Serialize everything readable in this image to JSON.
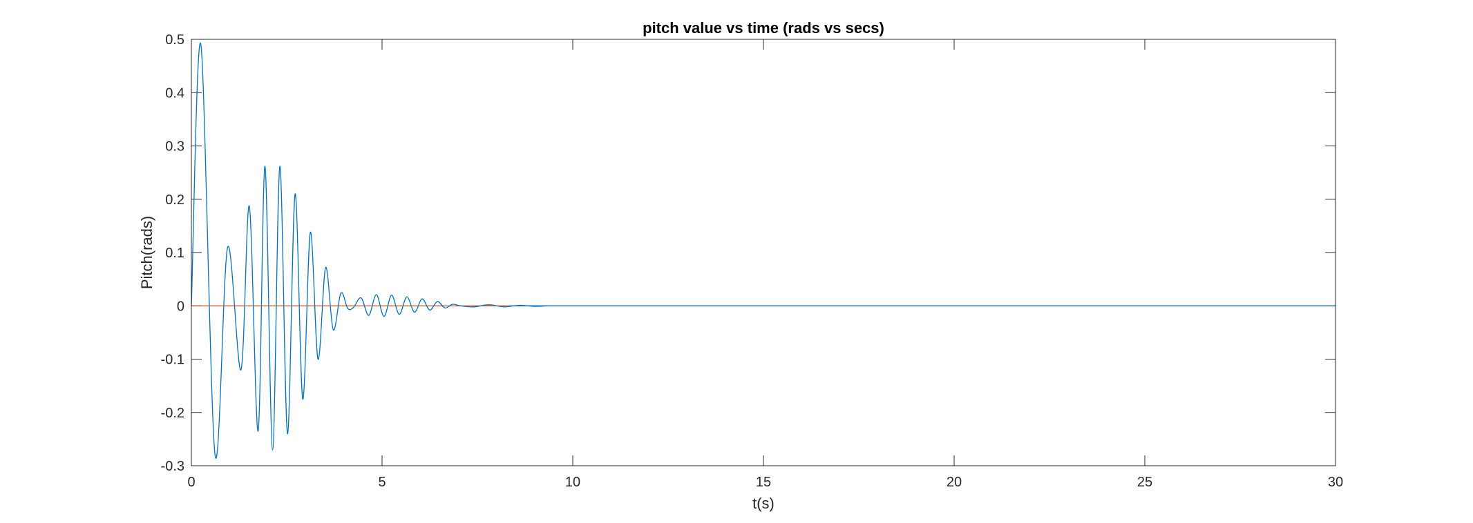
{
  "chart_data": {
    "type": "line",
    "title": "pitch value vs time (rads vs secs)",
    "xlabel": "t(s)",
    "ylabel": "Pitch(rads)",
    "xlim": [
      0,
      30
    ],
    "ylim": [
      -0.3,
      0.5
    ],
    "xticks": [
      0,
      5,
      10,
      15,
      20,
      25,
      30
    ],
    "yticks": [
      -0.3,
      -0.2,
      -0.1,
      0,
      0.1,
      0.2,
      0.3,
      0.4,
      0.5
    ],
    "xtick_labels": [
      "0",
      "5",
      "10",
      "15",
      "20",
      "25",
      "30"
    ],
    "ytick_labels": [
      "-0.3",
      "-0.2",
      "-0.1",
      "0",
      "0.1",
      "0.2",
      "0.3",
      "0.4",
      "0.5"
    ],
    "grid": false,
    "series": [
      {
        "color": "#0072BD",
        "x": [
          0,
          0.25,
          0.62,
          0.95,
          1.3,
          1.52,
          1.75,
          1.93,
          2.13,
          2.32,
          2.52,
          2.72,
          2.92,
          3.12,
          3.32,
          3.52,
          3.72,
          3.92,
          4.1,
          4.25,
          4.45,
          4.65,
          4.85,
          5.05,
          5.25,
          5.45,
          5.65,
          5.85,
          6.05,
          6.25,
          6.45,
          6.65,
          6.85,
          7.05,
          7.4,
          7.8,
          8.2,
          8.6,
          9.0,
          9.4,
          10.0,
          30.0
        ],
        "y": [
          0,
          0.49,
          -0.28,
          0.11,
          -0.12,
          0.187,
          -0.235,
          0.262,
          -0.27,
          0.262,
          -0.24,
          0.21,
          -0.175,
          0.138,
          -0.1,
          0.072,
          -0.045,
          0.024,
          -0.005,
          -0.003,
          0.015,
          -0.018,
          0.021,
          -0.02,
          0.02,
          -0.016,
          0.017,
          -0.012,
          0.013,
          -0.008,
          0.008,
          -0.004,
          0.003,
          0,
          -0.002,
          0.002,
          -0.002,
          0.001,
          -0.001,
          0,
          0,
          0
        ]
      },
      {
        "color": "#D95319",
        "x": [
          0,
          30
        ],
        "y": [
          0,
          0
        ]
      }
    ]
  }
}
